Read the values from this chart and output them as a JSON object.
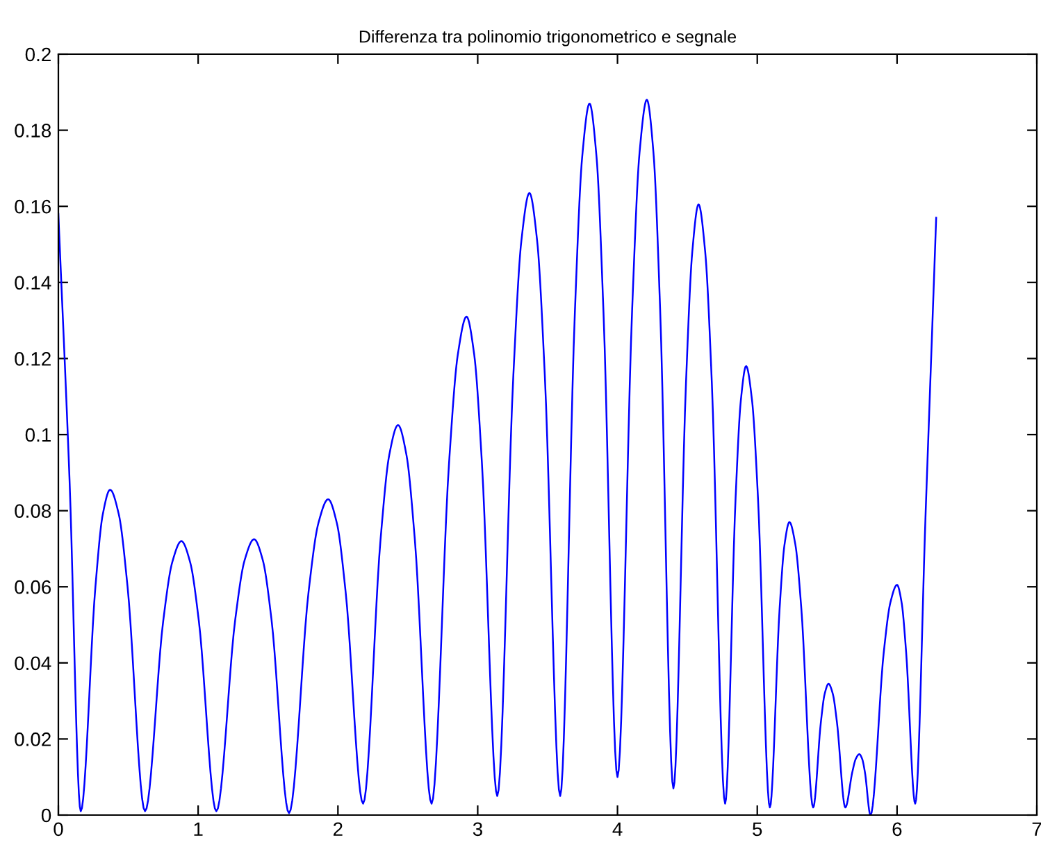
{
  "chart_data": {
    "type": "line",
    "title": "Differenza tra polinomio trigonometrico e segnale",
    "xlim": [
      0,
      7
    ],
    "xticks": [
      0,
      1,
      2,
      3,
      4,
      5,
      6,
      7
    ],
    "ylim": [
      0,
      0.2
    ],
    "yticks": [
      0,
      0.02,
      0.04,
      0.06,
      0.08,
      0.1,
      0.12,
      0.14,
      0.16,
      0.18,
      0.2
    ],
    "grid": false,
    "marker": "none",
    "line_style": "solid",
    "series": [
      {
        "color": "#0000ff",
        "x": [
          0,
          0.08,
          0.16,
          0.265,
          0.3175,
          0.37,
          0.4325,
          0.495,
          0.62,
          0.75,
          0.815,
          0.88,
          0.9425,
          1.005,
          1.13,
          1.265,
          1.3325,
          1.4,
          1.4625,
          1.525,
          1.65,
          1.79,
          1.86,
          1.93,
          1.9925,
          2.055,
          2.18,
          2.305,
          2.3675,
          2.43,
          2.49,
          2.55,
          2.67,
          2.795,
          2.8575,
          2.92,
          2.975,
          3.03,
          3.14,
          3.255,
          3.3125,
          3.37,
          3.425,
          3.48,
          3.59,
          3.695,
          3.7475,
          3.8,
          3.85,
          3.9,
          4.0,
          4.105,
          4.1575,
          4.21,
          4.2575,
          4.305,
          4.4,
          4.49,
          4.535,
          4.58,
          4.6275,
          4.675,
          4.77,
          4.845,
          4.8825,
          4.92,
          4.9625,
          5.005,
          5.09,
          5.16,
          5.195,
          5.23,
          5.2725,
          5.315,
          5.4,
          5.455,
          5.4825,
          5.51,
          5.54,
          5.57,
          5.63,
          5.68,
          5.705,
          5.73,
          5.75,
          5.77,
          5.81,
          5.905,
          5.9525,
          6.0,
          6.0325,
          6.065,
          6.13,
          6.205,
          6.28
        ],
        "values": [
          0.158,
          0.088,
          0.001,
          0.06,
          0.079,
          0.0855,
          0.079,
          0.06,
          0.001,
          0.051,
          0.0665,
          0.072,
          0.0665,
          0.051,
          0.001,
          0.0513,
          0.067,
          0.0725,
          0.067,
          0.0513,
          0.0005,
          0.0587,
          0.0767,
          0.083,
          0.0767,
          0.0587,
          0.003,
          0.0725,
          0.0947,
          0.1025,
          0.0947,
          0.0725,
          0.003,
          0.0926,
          0.121,
          0.131,
          0.121,
          0.0926,
          0.005,
          0.1156,
          0.151,
          0.1635,
          0.151,
          0.1156,
          0.005,
          0.132,
          0.173,
          0.187,
          0.173,
          0.132,
          0.01,
          0.133,
          0.174,
          0.188,
          0.174,
          0.133,
          0.007,
          0.1135,
          0.148,
          0.1605,
          0.148,
          0.1135,
          0.003,
          0.0834,
          0.109,
          0.118,
          0.109,
          0.0834,
          0.002,
          0.0544,
          0.0711,
          0.077,
          0.0711,
          0.0544,
          0.002,
          0.0244,
          0.0319,
          0.0345,
          0.0319,
          0.0244,
          0.002,
          0.0113,
          0.0148,
          0.016,
          0.0148,
          0.0113,
          0.0,
          0.0428,
          0.0559,
          0.0605,
          0.0559,
          0.0428,
          0.003,
          0.08,
          0.157
        ]
      }
    ]
  }
}
